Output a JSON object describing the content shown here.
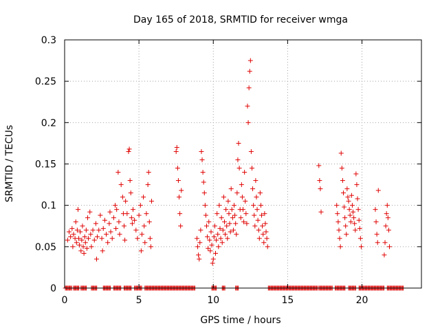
{
  "chart_data": {
    "type": "scatter",
    "title": "Day 165 of 2018, SRMTID for receiver wmga",
    "xlabel": "GPS time / hours",
    "ylabel": "SRMTID / TECUs",
    "xlim": [
      0,
      24
    ],
    "ylim": [
      0,
      0.3
    ],
    "grid": true,
    "x_ticks": [
      0,
      5,
      10,
      15,
      20
    ],
    "x_tick_labels": [
      "0",
      "5",
      "10",
      "15",
      "20"
    ],
    "y_ticks": [
      0,
      0.05,
      0.1,
      0.15,
      0.2,
      0.25,
      0.3
    ],
    "y_tick_labels": [
      "0",
      "0.05",
      "0.1",
      "0.15",
      "0.2",
      "0.25",
      "0.3"
    ],
    "marker": "plus",
    "series": [
      {
        "name": "SRMTID",
        "color": "#e00000",
        "points": [
          [
            0.2,
            0.058
          ],
          [
            0.3,
            0.068
          ],
          [
            0.4,
            0.062
          ],
          [
            0.5,
            0.072
          ],
          [
            0.55,
            0.05
          ],
          [
            0.6,
            0.065
          ],
          [
            0.7,
            0.06
          ],
          [
            0.75,
            0.08
          ],
          [
            0.8,
            0.055
          ],
          [
            0.85,
            0.07
          ],
          [
            0.9,
            0.095
          ],
          [
            0.95,
            0.06
          ],
          [
            1.0,
            0.052
          ],
          [
            1.05,
            0.068
          ],
          [
            1.1,
            0.045
          ],
          [
            1.15,
            0.058
          ],
          [
            1.2,
            0.075
          ],
          [
            1.25,
            0.05
          ],
          [
            1.3,
            0.042
          ],
          [
            1.35,
            0.062
          ],
          [
            1.4,
            0.055
          ],
          [
            1.45,
            0.07
          ],
          [
            1.5,
            0.048
          ],
          [
            1.55,
            0.085
          ],
          [
            1.6,
            0.06
          ],
          [
            1.7,
            0.092
          ],
          [
            1.75,
            0.065
          ],
          [
            1.8,
            0.05
          ],
          [
            1.9,
            0.07
          ],
          [
            2.0,
            0.058
          ],
          [
            2.1,
            0.078
          ],
          [
            2.15,
            0.035
          ],
          [
            2.2,
            0.062
          ],
          [
            2.3,
            0.07
          ],
          [
            2.4,
            0.088
          ],
          [
            2.5,
            0.06
          ],
          [
            2.55,
            0.045
          ],
          [
            2.6,
            0.072
          ],
          [
            2.7,
            0.082
          ],
          [
            2.8,
            0.065
          ],
          [
            2.9,
            0.055
          ],
          [
            3.0,
            0.078
          ],
          [
            3.05,
            0.092
          ],
          [
            3.1,
            0.068
          ],
          [
            3.2,
            0.06
          ],
          [
            3.3,
            0.085
          ],
          [
            3.4,
            0.1
          ],
          [
            3.45,
            0.072
          ],
          [
            3.5,
            0.095
          ],
          [
            3.6,
            0.14
          ],
          [
            3.65,
            0.08
          ],
          [
            3.7,
            0.065
          ],
          [
            3.8,
            0.125
          ],
          [
            3.9,
            0.11
          ],
          [
            3.95,
            0.09
          ],
          [
            4.0,
            0.075
          ],
          [
            4.05,
            0.058
          ],
          [
            4.1,
            0.105
          ],
          [
            4.2,
            0.09
          ],
          [
            4.3,
            0.165
          ],
          [
            4.35,
            0.168
          ],
          [
            4.4,
            0.13
          ],
          [
            4.45,
            0.115
          ],
          [
            4.5,
            0.085
          ],
          [
            4.55,
            0.078
          ],
          [
            4.6,
            0.095
          ],
          [
            4.7,
            0.082
          ],
          [
            4.8,
            0.07
          ],
          [
            4.9,
            0.06
          ],
          [
            5.0,
            0.088
          ],
          [
            5.1,
            0.1
          ],
          [
            5.15,
            0.045
          ],
          [
            5.2,
            0.065
          ],
          [
            5.3,
            0.11
          ],
          [
            5.35,
            0.075
          ],
          [
            5.4,
            0.055
          ],
          [
            5.5,
            0.09
          ],
          [
            5.6,
            0.125
          ],
          [
            5.65,
            0.14
          ],
          [
            5.7,
            0.08
          ],
          [
            5.75,
            0.06
          ],
          [
            5.8,
            0.05
          ],
          [
            5.85,
            0.105
          ],
          [
            7.5,
            0.165
          ],
          [
            7.55,
            0.17
          ],
          [
            7.6,
            0.145
          ],
          [
            7.65,
            0.13
          ],
          [
            7.7,
            0.11
          ],
          [
            7.75,
            0.09
          ],
          [
            7.8,
            0.075
          ],
          [
            7.85,
            0.118
          ],
          [
            9.2,
            0.165
          ],
          [
            9.25,
            0.155
          ],
          [
            9.3,
            0.14
          ],
          [
            9.35,
            0.128
          ],
          [
            9.4,
            0.115
          ],
          [
            9.45,
            0.1
          ],
          [
            9.5,
            0.088
          ],
          [
            9.55,
            0.075
          ],
          [
            8.9,
            0.06
          ],
          [
            8.95,
            0.05
          ],
          [
            9.0,
            0.04
          ],
          [
            9.05,
            0.035
          ],
          [
            9.1,
            0.055
          ],
          [
            9.15,
            0.07
          ],
          [
            9.6,
            0.062
          ],
          [
            9.65,
            0.048
          ],
          [
            9.7,
            0.08
          ],
          [
            9.75,
            0.058
          ],
          [
            9.8,
            0.045
          ],
          [
            9.85,
            0.068
          ],
          [
            9.9,
            0.052
          ],
          [
            9.95,
            0.03
          ],
          [
            10.0,
            0.035
          ],
          [
            10.05,
            0.062
          ],
          [
            10.1,
            0.075
          ],
          [
            10.15,
            0.042
          ],
          [
            10.2,
            0.058
          ],
          [
            10.25,
            0.09
          ],
          [
            10.3,
            0.065
          ],
          [
            10.35,
            0.05
          ],
          [
            10.4,
            0.1
          ],
          [
            10.45,
            0.072
          ],
          [
            10.5,
            0.06
          ],
          [
            10.55,
            0.085
          ],
          [
            10.6,
            0.055
          ],
          [
            10.65,
            0.07
          ],
          [
            10.7,
            0.11
          ],
          [
            10.75,
            0.08
          ],
          [
            10.8,
            0.065
          ],
          [
            10.85,
            0.095
          ],
          [
            10.9,
            0.075
          ],
          [
            10.95,
            0.06
          ],
          [
            11.0,
            0.105
          ],
          [
            11.05,
            0.09
          ],
          [
            11.1,
            0.078
          ],
          [
            11.15,
            0.068
          ],
          [
            11.2,
            0.12
          ],
          [
            11.25,
            0.095
          ],
          [
            11.3,
            0.085
          ],
          [
            11.35,
            0.07
          ],
          [
            11.4,
            0.1
          ],
          [
            11.45,
            0.088
          ],
          [
            11.5,
            0.078
          ],
          [
            11.55,
            0.065
          ],
          [
            11.6,
            0.115
          ],
          [
            11.65,
            0.155
          ],
          [
            11.7,
            0.175
          ],
          [
            11.75,
            0.145
          ],
          [
            11.8,
            0.095
          ],
          [
            11.85,
            0.085
          ],
          [
            11.9,
            0.125
          ],
          [
            11.95,
            0.11
          ],
          [
            12.0,
            0.095
          ],
          [
            12.05,
            0.08
          ],
          [
            12.1,
            0.14
          ],
          [
            12.15,
            0.105
          ],
          [
            12.2,
            0.09
          ],
          [
            12.25,
            0.078
          ],
          [
            12.3,
            0.22
          ],
          [
            12.35,
            0.2
          ],
          [
            12.4,
            0.242
          ],
          [
            12.45,
            0.262
          ],
          [
            12.5,
            0.275
          ],
          [
            12.55,
            0.165
          ],
          [
            12.6,
            0.145
          ],
          [
            12.65,
            0.12
          ],
          [
            12.7,
            0.1
          ],
          [
            12.75,
            0.088
          ],
          [
            12.8,
            0.075
          ],
          [
            12.85,
            0.13
          ],
          [
            12.9,
            0.11
          ],
          [
            12.95,
            0.095
          ],
          [
            13.0,
            0.082
          ],
          [
            13.05,
            0.07
          ],
          [
            13.1,
            0.06
          ],
          [
            13.15,
            0.115
          ],
          [
            13.2,
            0.1
          ],
          [
            13.25,
            0.088
          ],
          [
            13.3,
            0.075
          ],
          [
            13.35,
            0.065
          ],
          [
            13.4,
            0.055
          ],
          [
            13.45,
            0.09
          ],
          [
            13.5,
            0.078
          ],
          [
            13.55,
            0.068
          ],
          [
            13.6,
            0.06
          ],
          [
            13.65,
            0.05
          ],
          [
            17.1,
            0.148
          ],
          [
            17.15,
            0.13
          ],
          [
            17.2,
            0.12
          ],
          [
            17.25,
            0.092
          ],
          [
            18.3,
            0.1
          ],
          [
            18.35,
            0.09
          ],
          [
            18.4,
            0.08
          ],
          [
            18.45,
            0.07
          ],
          [
            18.5,
            0.06
          ],
          [
            18.55,
            0.05
          ],
          [
            18.6,
            0.163
          ],
          [
            18.65,
            0.145
          ],
          [
            18.7,
            0.13
          ],
          [
            18.75,
            0.115
          ],
          [
            18.8,
            0.098
          ],
          [
            18.85,
            0.085
          ],
          [
            18.9,
            0.075
          ],
          [
            18.95,
            0.065
          ],
          [
            19.0,
            0.12
          ],
          [
            19.05,
            0.11
          ],
          [
            19.1,
            0.105
          ],
          [
            19.15,
            0.095
          ],
          [
            19.2,
            0.088
          ],
          [
            19.25,
            0.08
          ],
          [
            19.3,
            0.112
          ],
          [
            19.35,
            0.1
          ],
          [
            19.4,
            0.092
          ],
          [
            19.45,
            0.085
          ],
          [
            19.5,
            0.078
          ],
          [
            19.55,
            0.07
          ],
          [
            19.6,
            0.138
          ],
          [
            19.65,
            0.125
          ],
          [
            19.7,
            0.108
          ],
          [
            19.75,
            0.095
          ],
          [
            19.8,
            0.082
          ],
          [
            19.85,
            0.072
          ],
          [
            19.9,
            0.06
          ],
          [
            19.95,
            0.05
          ],
          [
            20.9,
            0.095
          ],
          [
            20.95,
            0.08
          ],
          [
            21.0,
            0.065
          ],
          [
            21.05,
            0.055
          ],
          [
            21.1,
            0.118
          ],
          [
            21.5,
            0.04
          ],
          [
            21.55,
            0.055
          ],
          [
            21.6,
            0.075
          ],
          [
            21.65,
            0.09
          ],
          [
            21.7,
            0.1
          ],
          [
            21.75,
            0.085
          ],
          [
            21.8,
            0.07
          ],
          [
            21.85,
            0.05
          ]
        ],
        "zero_segments": [
          [
            0.05,
            0.5
          ],
          [
            0.6,
            1.0
          ],
          [
            1.1,
            1.5
          ],
          [
            1.8,
            2.2
          ],
          [
            2.6,
            3.1
          ],
          [
            3.3,
            3.8
          ],
          [
            4.0,
            4.5
          ],
          [
            4.7,
            5.2
          ],
          [
            5.4,
            8.8
          ],
          [
            9.9,
            10.2
          ],
          [
            10.6,
            10.8
          ],
          [
            11.5,
            11.7
          ],
          [
            13.7,
            17.0
          ],
          [
            17.1,
            18.0
          ],
          [
            18.2,
            18.9
          ],
          [
            19.1,
            19.6
          ],
          [
            19.8,
            21.5
          ],
          [
            21.7,
            22.8
          ]
        ]
      }
    ]
  }
}
